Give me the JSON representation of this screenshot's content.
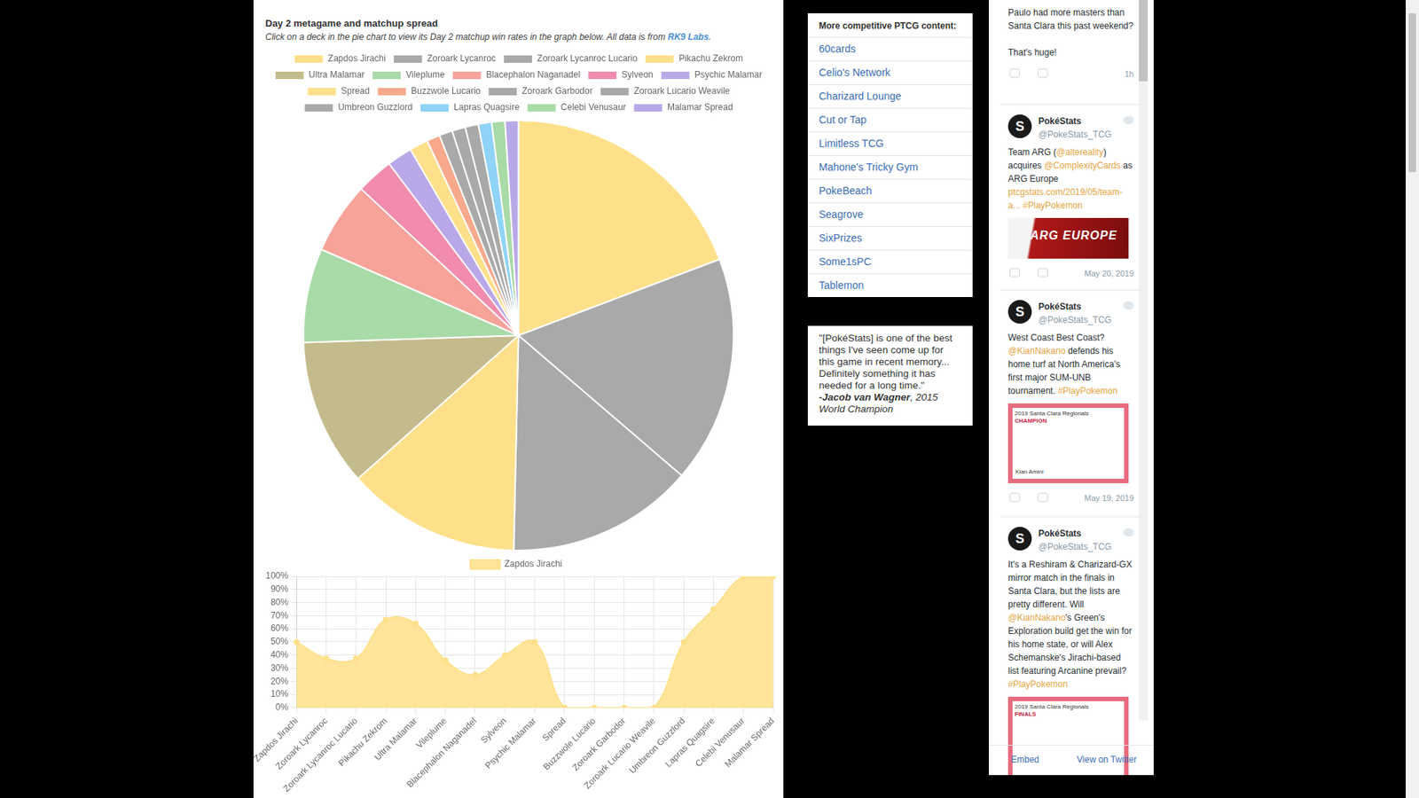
{
  "page": {
    "heading": "Day 2 metagame and matchup spread",
    "subtitle": "Click on a deck in the pie chart to view its Day 2 matchup win rates in the graph below. All data is from ",
    "source_link": "RK9 Labs",
    "subtitle_end": "."
  },
  "sidebar": {
    "links_title": "More competitive PTCG content:",
    "links": [
      "60cards",
      "Celio's Network",
      "Charizard Lounge",
      "Cut or Tap",
      "Limitless TCG",
      "Mahone's Tricky Gym",
      "PokeBeach",
      "Seagrove",
      "SixPrizes",
      "Some1sPC",
      "Tablemon"
    ],
    "quote": "\"[PokéStats] is one of the best things I've seen come up for this game in recent memory... Definitely something it has needed for a long time.\"",
    "quote_author": "-Jacob van Wagner",
    "quote_credit": ", 2015 World Champion"
  },
  "twitter": {
    "partial_tweet": {
      "text": "Paulo had more masters than Santa Clara this past weekend?\n\nThat's huge!",
      "time": "1h"
    },
    "tweets": [
      {
        "name": "PokéStats",
        "handle": "@PokeStats_TCG",
        "text": "Team ARG (@altereality) acquires @ComplexityCards as ARG Europe ptcgstats.com/2019/05/team-a... #PlayPokemon",
        "image_text": [
          "ARG",
          "EUROPE"
        ],
        "date": "May 20, 2019"
      },
      {
        "name": "PokéStats",
        "handle": "@PokeStats_TCG",
        "text": "West Coast Best Coast? @KianNakano defends his home turf at North America's first major SUM-UNB tournament. #PlayPokemon",
        "image_text": [
          "2019 Santa Clara Regionals",
          "CHAMPION",
          "Kian Amini"
        ],
        "date": "May 19, 2019"
      },
      {
        "name": "PokéStats",
        "handle": "@PokeStats_TCG",
        "text": "It's a Reshiram & Charizard-GX mirror match in the finals in Santa Clara, but the lists are pretty different. Will @KianNakano's Green's Exploration build get the win for his home state, or will Alex Schemanske's Jirachi-based list featuring Arcanine prevail? #PlayPokemon",
        "image_text": [
          "2019 Santa Clara Regionals",
          "FINALS"
        ]
      }
    ],
    "footer": [
      "Embed",
      "View on Twitter"
    ]
  },
  "chart_data": [
    {
      "type": "pie",
      "categories": [
        "Zapdos Jirachi",
        "Zoroark Lycanroc",
        "Zoroark Lycanroc Lucario",
        "Pikachu Zekrom",
        "Ultra Malamar",
        "Vileplume",
        "Blacephalon Naganadel",
        "Sylveon",
        "Psychic Malamar",
        "Spread",
        "Buzzwole Lucario",
        "Zoroark Garbodor",
        "Zoroark Lucario Weavile",
        "Umbreon Guzzlord",
        "Lapras Quagsire",
        "Celebi Venusaur",
        "Malamar Spread"
      ],
      "values": [
        19.3,
        17.1,
        14.1,
        13.1,
        11.1,
        7.1,
        5.4,
        2.8,
        1.9,
        1.4,
        1,
        1,
        1,
        1,
        1,
        1,
        1
      ],
      "colors": [
        "#ffe08a",
        "#a9a9a9",
        "#a9a9a9",
        "#ffe08a",
        "#c4bb8c",
        "#a8dba8",
        "#f7a399",
        "#f28cae",
        "#b9a8e8",
        "#ffe08a",
        "#f9a98b",
        "#a9a9a9",
        "#a9a9a9",
        "#a9a9a9",
        "#8fd3f7",
        "#a8dba8",
        "#b9a8e8"
      ],
      "legend": "top"
    },
    {
      "type": "line",
      "categories": [
        "Zapdos Jirachi",
        "Zoroark Lycanroc",
        "Zoroark Lycanroc Lucario",
        "Pikachu Zekrom",
        "Ultra Malamar",
        "Vileplume",
        "Blacephalon Naganadel",
        "Sylveon",
        "Psychic Malamar",
        "Spread",
        "Buzzwole Lucario",
        "Zoroark Garbodor",
        "Zoroark Lucario Weavile",
        "Umbreon Guzzlord",
        "Lapras Quagsire",
        "Celebi Venusaur",
        "Malamar Spread"
      ],
      "series": [
        {
          "name": "Zapdos Jirachi",
          "color": "#ffe08a",
          "values": [
            50,
            37.5,
            37.5,
            67,
            64,
            36,
            25,
            40,
            50,
            0,
            0,
            0,
            0,
            50,
            75,
            100,
            100
          ]
        }
      ],
      "ylim": [
        0,
        100
      ],
      "yticks": [
        {
          "value": 0,
          "label": "0%"
        },
        {
          "value": 10,
          "label": "10%"
        },
        {
          "value": 20,
          "label": "20%"
        },
        {
          "value": 30,
          "label": "30%"
        },
        {
          "value": 40,
          "label": "40%"
        },
        {
          "value": 50,
          "label": "50%"
        },
        {
          "value": 60,
          "label": "60%"
        },
        {
          "value": 70,
          "label": "70%"
        },
        {
          "value": 80,
          "label": "80%"
        },
        {
          "value": 90,
          "label": "90%"
        },
        {
          "value": 100,
          "label": "100%"
        }
      ],
      "grid": true,
      "legend": "top"
    }
  ]
}
